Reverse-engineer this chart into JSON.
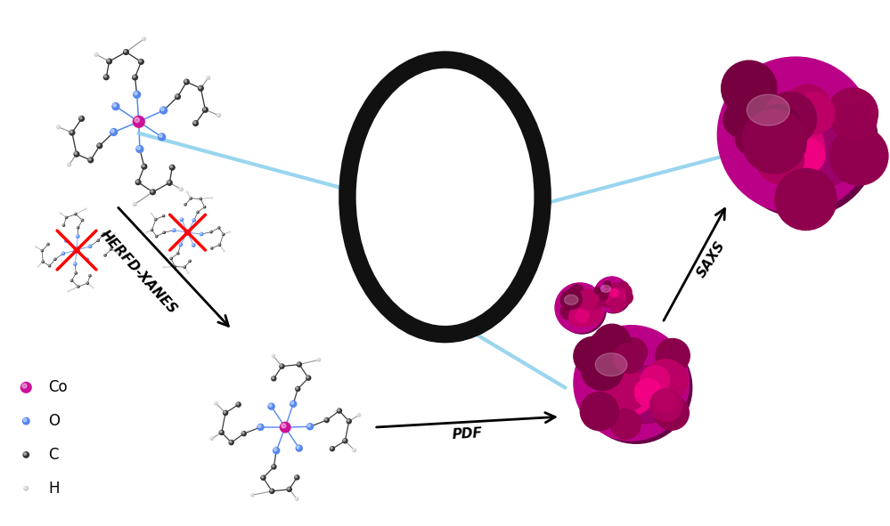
{
  "bg_color": "#ffffff",
  "ring_color": "#111111",
  "beam_color": "#87CEEB",
  "co_color": "#cc1199",
  "o_color": "#5588ee",
  "c_color": "#333333",
  "h_color": "#cccccc",
  "np_color1": "#bb0088",
  "np_color2": "#990066",
  "np_color3": "#dd11aa",
  "legend_items": [
    {
      "label": "Co",
      "color": "#cc1199",
      "r": 0.022
    },
    {
      "label": "O",
      "color": "#5588ee",
      "r": 0.015
    },
    {
      "label": "C",
      "color": "#333333",
      "r": 0.013
    },
    {
      "label": "H",
      "color": "#cccccc",
      "r": 0.01
    }
  ]
}
